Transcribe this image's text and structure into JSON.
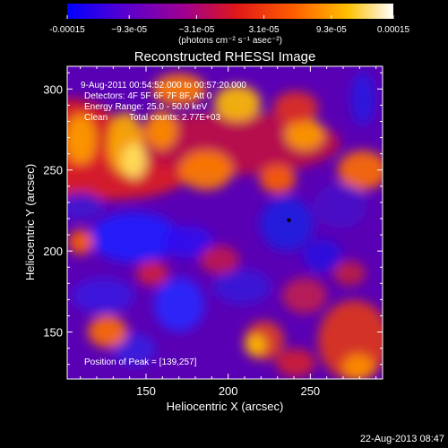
{
  "chart_data": {
    "type": "heatmap",
    "title": "Reconstructed RHESSI Image",
    "xlabel": "Heliocentric X (arcsec)",
    "ylabel": "Heliocentric Y (arcsec)",
    "xlim": [
      102,
      294
    ],
    "ylim": [
      121,
      314
    ],
    "xticks": [
      "150",
      "200",
      "250"
    ],
    "xtick_values": [
      150,
      200,
      250
    ],
    "yticks": [
      "150",
      "200",
      "250",
      "300"
    ],
    "ytick_values": [
      150,
      200,
      250,
      300
    ],
    "colorbar": {
      "tick_labels": [
        "-0.00015",
        "−9.3e-05",
        "−3.1e-05",
        "3.1e-05",
        "9.3e-05",
        "0.00015"
      ],
      "tick_values": [
        -0.00015,
        -9.3e-05,
        -3.1e-05,
        3.1e-05,
        9.3e-05,
        0.00015
      ],
      "range": [
        -0.00015,
        0.00015
      ],
      "unit_label": "(photons cm⁻² s⁻¹ asec⁻²)",
      "colors": [
        "#0000ff",
        "#6000c8",
        "#a00080",
        "#e01010",
        "#ff6000",
        "#ffc000",
        "#ffffff"
      ]
    },
    "annotations": {
      "time_range": "9-Aug-2011 00:54:52.000 to 00:57:20.000",
      "detectors": "Detectors: 4F 5F 6F 7F 8F, Att 0",
      "energy_range": "Energy Range: 25.0 - 50.0 keV",
      "method": "Clean",
      "total_counts": "Total counts: 2.77E+03",
      "peak": "Position of Peak = [139,257]"
    },
    "peak_position": [
      139,
      257
    ],
    "marker_position": [
      237,
      219
    ],
    "grid": false
  },
  "footer": {
    "timestamp": "22-Aug-2013 08:47"
  }
}
